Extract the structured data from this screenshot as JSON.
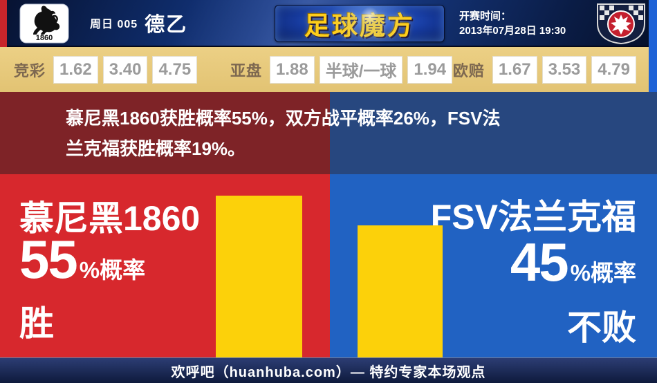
{
  "header": {
    "home_logo_text": "1860",
    "match_day": "周日 005",
    "league": "德乙",
    "brand_name": "足球魔方",
    "kickoff_label": "开赛时间：",
    "kickoff_datetime": "2013年07月28日 19:30"
  },
  "odds": {
    "jingcai_label": "竞彩",
    "jingcai_values": [
      "1.62",
      "3.40",
      "4.75"
    ],
    "yapan_label": "亚盘",
    "yapan_home": "1.88",
    "yapan_handicap": "半球/一球",
    "yapan_away": "1.94",
    "oupei_label": "欧赔",
    "oupei_values": [
      "1.67",
      "3.53",
      "4.79"
    ]
  },
  "summary": {
    "line1": "慕尼黑1860获胜概率55%，双方战平概率26%，FSV法",
    "line2": "兰克福获胜概率19%。"
  },
  "home_panel": {
    "team": "慕尼黑1860",
    "percent": "55",
    "percent_suffix": "%概率",
    "outcome": "胜"
  },
  "away_panel": {
    "team": "FSV法兰克福",
    "percent": "45",
    "percent_suffix": "%概率",
    "outcome": "不败"
  },
  "footer": {
    "text": "欢呼吧（huanhuba.com）— 特约专家本场观点"
  },
  "colors": {
    "home_red": "#d7282d",
    "away_blue": "#2162c2",
    "bar_yellow": "#fcd10a",
    "banner_maroon": "#7e2327",
    "banner_navy": "#27477f",
    "odds_strip_tan": "#e7ca7c",
    "header_navy": "#12307a",
    "brand_gold": "#ffce1a"
  },
  "chart_data": {
    "type": "bar",
    "categories": [
      "慕尼黑1860",
      "FSV法兰克福"
    ],
    "values": [
      55,
      45
    ],
    "value_labels": [
      "55%概率 胜",
      "45%概率 不败"
    ],
    "bar_color": "#fcd10a",
    "mentioned_probabilities": {
      "home_win_pct": 55,
      "draw_pct": 26,
      "away_win_pct": 19
    }
  }
}
